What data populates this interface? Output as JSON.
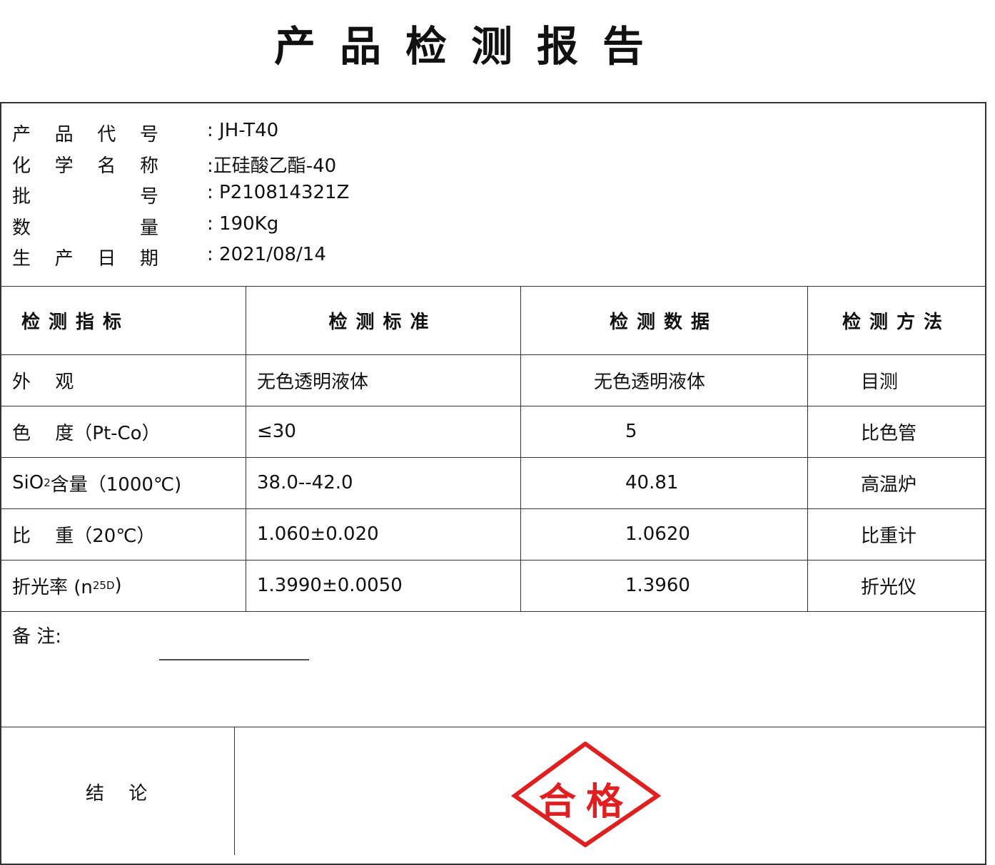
{
  "title": "产品检测报告",
  "info": [
    {
      "label": "产品代号",
      "value": ": JH-T40"
    },
    {
      "label": "化学名称",
      "value": ":正硅酸乙酯-40"
    },
    {
      "label": "批号",
      "value": ": P210814321Z"
    },
    {
      "label": "数量",
      "value": ": 190Kg"
    },
    {
      "label": "生产日期",
      "value": ": 2021/08/14"
    }
  ],
  "table": {
    "headers": [
      "检测指标",
      "检测标准",
      "检测数据",
      "检测方法"
    ],
    "rows": [
      {
        "item": "外　 观",
        "standard": "无色透明液体",
        "result": "无色透明液体",
        "method": "目测"
      },
      {
        "item": "色　 度（Pt-Co）",
        "standard": "≤30",
        "result": "5",
        "method": "比色管"
      },
      {
        "item_parts": [
          "SiO",
          "2",
          " 含量（1000℃)"
        ],
        "standard": "38.0--42.0",
        "result": "40.81",
        "method": "高温炉"
      },
      {
        "item": "比　 重（20℃）",
        "standard": "1.060±0.020",
        "result": "1.0620",
        "method": "比重计"
      },
      {
        "item_parts": [
          "折光率 (n",
          "25",
          "D",
          ")"
        ],
        "standard": "1.3990±0.0050",
        "result": "1.3960",
        "method": "折光仪"
      }
    ]
  },
  "remarks": {
    "label": "备 注:",
    "line": "—————————————"
  },
  "conclusion": {
    "label": "结　 论",
    "stamp": "合格",
    "stamp_color": "#e02020"
  }
}
